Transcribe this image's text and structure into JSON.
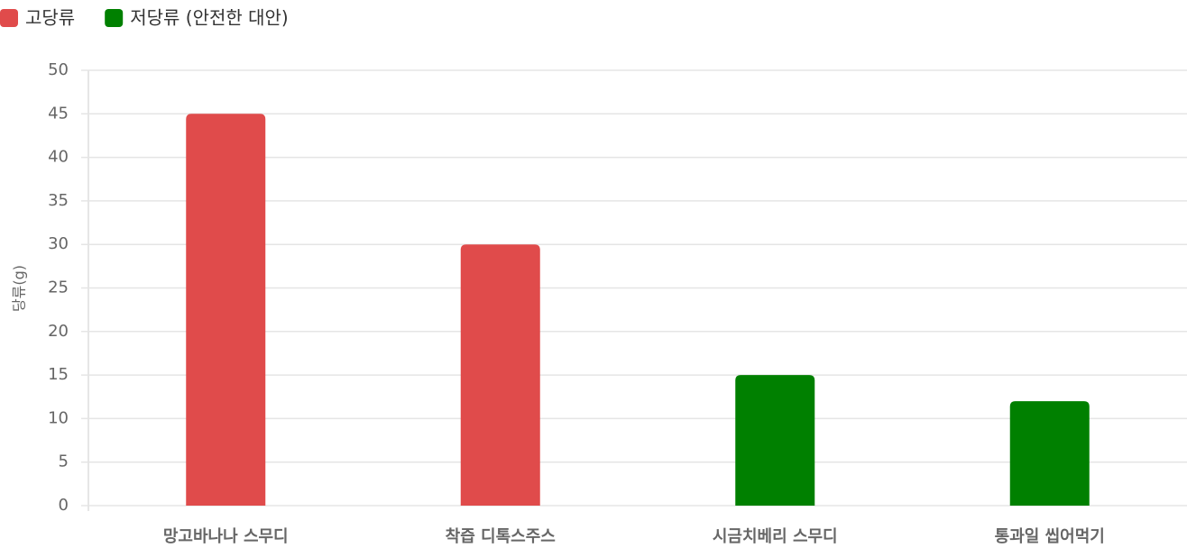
{
  "chart_data": {
    "type": "bar",
    "categories": [
      "망고바나나 스무디",
      "착즙 디톡스주스",
      "시금치베리 스무디",
      "통과일 씹어먹기"
    ],
    "series": [
      {
        "name": "고당류",
        "color": "#e04b4b",
        "values": [
          45,
          30,
          null,
          null
        ]
      },
      {
        "name": "저당류 (안전한 대안)",
        "color": "#008000",
        "values": [
          null,
          null,
          15,
          12
        ]
      }
    ],
    "y_label": "당류(g)",
    "ylim": [
      0,
      50
    ],
    "yticks": [
      0,
      5,
      10,
      15,
      20,
      25,
      30,
      35,
      40,
      45,
      50
    ],
    "grid": true,
    "legend": "top-left"
  }
}
